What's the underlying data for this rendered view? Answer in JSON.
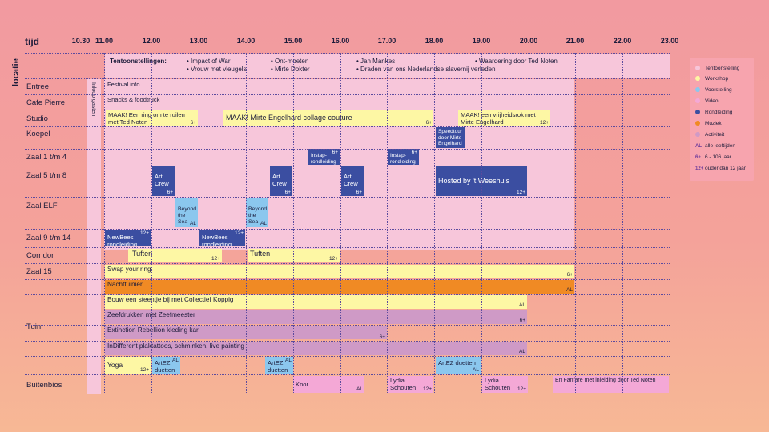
{
  "header": {
    "tijd": "tijd",
    "locatie": "locatie"
  },
  "times": [
    "10.30",
    "11.00",
    "12.00",
    "13.00",
    "14.00",
    "15.00",
    "16.00",
    "17.00",
    "18.00",
    "19.00",
    "20.00",
    "21.00",
    "22.00",
    "23.00"
  ],
  "tentoonstellingen": {
    "label": "Tentoonstellingen:",
    "col1": [
      "Impact of War",
      "Vrouw met vleugels"
    ],
    "col2": [
      "Ont-moeten",
      "Mirte Dokter"
    ],
    "col3": [
      "Jan Mankes",
      "Draden van ons Nederlandse slavernij verleden"
    ],
    "col4": [
      "Waardering door Ted Noten"
    ]
  },
  "inloop": "Inloop gasten",
  "rows": [
    "Entree",
    "Cafe Pierre",
    "Studio",
    "Koepel",
    "Zaal 1 t/m 4",
    "Zaal 5 t/m 8",
    "Zaal ELF",
    "Zaal 9 t/m 14",
    "Corridor",
    "Zaal 15",
    "Tuin",
    "Buitenbios"
  ],
  "events": {
    "festival_info": "Festival info",
    "snacks": "Snacks & foodtruck",
    "studio1": "MAAK! Een ring om te ruilen met Ted Noten",
    "studio2": "MAAK! Mirte Engelhard collage couture",
    "studio3": "MAAK! een vrijheidsrok met Mirte Engelhard",
    "speedtour": "Speedtour door Mirte Engelhard",
    "instap": "Instap-rondleiding",
    "art_crew": "Art Crew",
    "weeshuis": "Hosted by 't Weeshuis",
    "beyond": "Beyond the Sea",
    "newbees": "NewBees rondleiding",
    "tuften": "Tuften",
    "swap": "Swap your ring",
    "nachttuinier": "Nachttuinier",
    "bouw": "Bouw een steentje bij met Collectief Koppig",
    "zeefdrukken": "Zeefdrukken met Zeefmeester",
    "extinction": "Extinction Rebellion kleding kar",
    "indifferent": "InDifferent plaktattoos, schminken, live painting",
    "yoga": "Yoga",
    "artez": "ArtEZ duetten",
    "knor": "Knor",
    "lydia": "Lydia Schouten",
    "fanfare": "En Fanfare met inleiding door Ted Noten"
  },
  "tags": {
    "al": "AL",
    "six": "6+",
    "twelve": "12+"
  },
  "legend": {
    "items": [
      {
        "label": "Tentoonstelling",
        "color": "#f7c6da"
      },
      {
        "label": "Workshop",
        "color": "#fdf7a4"
      },
      {
        "label": "Voorstelling",
        "color": "#8bc7ee"
      },
      {
        "label": "Video",
        "color": "#f4a8d6"
      },
      {
        "label": "Rondleiding",
        "color": "#3b4ea1"
      },
      {
        "label": "Muziek",
        "color": "#f08a24"
      },
      {
        "label": "Activiteit",
        "color": "#cf9ac6"
      }
    ],
    "codes": [
      {
        "code": "AL",
        "label": "alle leeftijden"
      },
      {
        "code": "6+",
        "label": "6 - 106 jaar"
      },
      {
        "code": "12+",
        "label": "ouder dan 12 jaar"
      }
    ]
  }
}
